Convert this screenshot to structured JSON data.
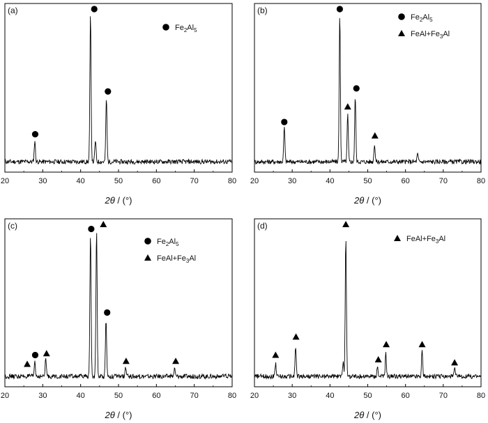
{
  "figure": {
    "panels": [
      "(a)",
      "(b)",
      "(c)",
      "(d)"
    ]
  },
  "chart_data": [
    {
      "type": "line",
      "panel_label": "(a)",
      "xlabel_symbol": "2θ",
      "xlabel_unit": "/ (°)",
      "xlim": [
        20,
        80
      ],
      "x_ticks": [
        20,
        30,
        40,
        50,
        60,
        70,
        80
      ],
      "legend": [
        {
          "marker": "circle",
          "text": "Fe",
          "sub1": "2",
          "text2": "Al",
          "sub2": "5"
        }
      ],
      "peaks": [
        {
          "x": 27.9,
          "h": 0.14
        },
        {
          "x": 42.6,
          "h": 0.97
        },
        {
          "x": 43.9,
          "h": 0.14
        },
        {
          "x": 46.8,
          "h": 0.42
        }
      ],
      "markers": [
        {
          "x": 28.0,
          "h": 0.18,
          "shape": "circle"
        },
        {
          "x": 43.6,
          "h": 1.0,
          "shape": "circle"
        },
        {
          "x": 47.2,
          "h": 0.46,
          "shape": "circle"
        }
      ]
    },
    {
      "type": "line",
      "panel_label": "(b)",
      "xlabel_symbol": "2θ",
      "xlabel_unit": "/ (°)",
      "xlim": [
        20,
        80
      ],
      "x_ticks": [
        20,
        30,
        40,
        50,
        60,
        70,
        80
      ],
      "legend": [
        {
          "marker": "circle",
          "text": "Fe",
          "sub1": "2",
          "text2": "Al",
          "sub2": "5"
        },
        {
          "marker": "triangle",
          "text": "FeAl+Fe",
          "sub1": "3",
          "text2": "Al",
          "sub2": ""
        }
      ],
      "peaks": [
        {
          "x": 27.9,
          "h": 0.23
        },
        {
          "x": 42.6,
          "h": 0.97
        },
        {
          "x": 44.7,
          "h": 0.31
        },
        {
          "x": 46.7,
          "h": 0.43
        },
        {
          "x": 51.8,
          "h": 0.12
        },
        {
          "x": 63.2,
          "h": 0.05
        }
      ],
      "markers": [
        {
          "x": 27.9,
          "h": 0.26,
          "shape": "circle"
        },
        {
          "x": 42.6,
          "h": 1.0,
          "shape": "circle"
        },
        {
          "x": 44.7,
          "h": 0.36,
          "shape": "triangle"
        },
        {
          "x": 47.0,
          "h": 0.48,
          "shape": "circle"
        },
        {
          "x": 51.9,
          "h": 0.17,
          "shape": "triangle"
        }
      ]
    },
    {
      "type": "line",
      "panel_label": "(c)",
      "xlabel_symbol": "2θ",
      "xlabel_unit": "/ (°)",
      "xlim": [
        20,
        80
      ],
      "x_ticks": [
        20,
        30,
        40,
        50,
        60,
        70,
        80
      ],
      "legend": [
        {
          "marker": "circle",
          "text": "Fe",
          "sub1": "2",
          "text2": "Al",
          "sub2": "5"
        },
        {
          "marker": "triangle",
          "text": "FeAl+Fe",
          "sub1": "3",
          "text2": "Al",
          "sub2": ""
        }
      ],
      "peaks": [
        {
          "x": 27.9,
          "h": 0.1
        },
        {
          "x": 30.8,
          "h": 0.12
        },
        {
          "x": 42.6,
          "h": 0.95
        },
        {
          "x": 44.2,
          "h": 0.97
        },
        {
          "x": 46.7,
          "h": 0.39
        },
        {
          "x": 51.9,
          "h": 0.06
        },
        {
          "x": 64.8,
          "h": 0.05
        }
      ],
      "markers": [
        {
          "x": 25.9,
          "h": 0.08,
          "shape": "triangle"
        },
        {
          "x": 28.0,
          "h": 0.14,
          "shape": "circle"
        },
        {
          "x": 31.0,
          "h": 0.15,
          "shape": "triangle"
        },
        {
          "x": 42.8,
          "h": 0.97,
          "shape": "circle"
        },
        {
          "x": 46.0,
          "h": 1.0,
          "shape": "triangle"
        },
        {
          "x": 47.0,
          "h": 0.42,
          "shape": "circle"
        },
        {
          "x": 52.0,
          "h": 0.1,
          "shape": "triangle"
        },
        {
          "x": 65.1,
          "h": 0.1,
          "shape": "triangle"
        }
      ]
    },
    {
      "type": "line",
      "panel_label": "(d)",
      "xlabel_symbol": "2θ",
      "xlabel_unit": "/ (°)",
      "xlim": [
        20,
        80
      ],
      "x_ticks": [
        20,
        30,
        40,
        50,
        60,
        70,
        80
      ],
      "legend": [
        {
          "marker": "triangle",
          "text": "FeAl+Fe",
          "sub1": "3",
          "text2": "Al",
          "sub2": ""
        }
      ],
      "peaks": [
        {
          "x": 25.6,
          "h": 0.09
        },
        {
          "x": 30.9,
          "h": 0.2
        },
        {
          "x": 43.5,
          "h": 0.1
        },
        {
          "x": 44.2,
          "h": 0.93
        },
        {
          "x": 52.6,
          "h": 0.06
        },
        {
          "x": 54.8,
          "h": 0.15
        },
        {
          "x": 64.4,
          "h": 0.17
        },
        {
          "x": 73.0,
          "h": 0.05
        }
      ],
      "markers": [
        {
          "x": 25.6,
          "h": 0.14,
          "shape": "triangle"
        },
        {
          "x": 31.0,
          "h": 0.26,
          "shape": "triangle"
        },
        {
          "x": 44.2,
          "h": 1.0,
          "shape": "triangle"
        },
        {
          "x": 52.8,
          "h": 0.11,
          "shape": "triangle"
        },
        {
          "x": 54.9,
          "h": 0.21,
          "shape": "triangle"
        },
        {
          "x": 64.4,
          "h": 0.21,
          "shape": "triangle"
        },
        {
          "x": 73.0,
          "h": 0.09,
          "shape": "triangle"
        }
      ]
    }
  ]
}
